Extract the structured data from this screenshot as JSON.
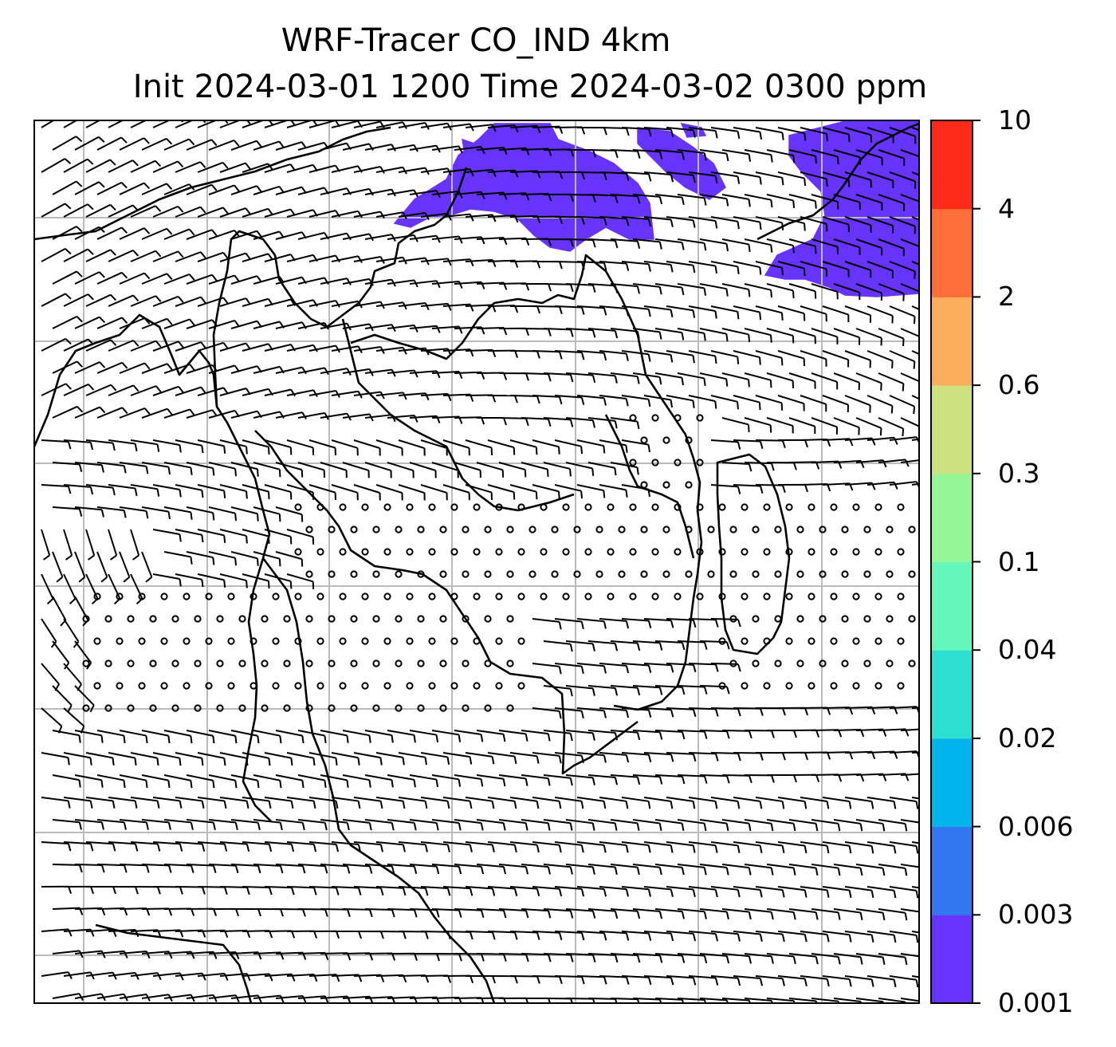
{
  "title": {
    "line1": "WRF-Tracer CO_IND 4km",
    "line2": "Init 2024-03-01 1200 Time 2024-03-02 0300 ppm"
  },
  "colorbar": {
    "ticks": [
      "0.001",
      "0.003",
      "0.006",
      "0.02",
      "0.04",
      "0.1",
      "0.3",
      "0.6",
      "2",
      "4",
      "10"
    ],
    "colors": [
      "#6633ff",
      "#3377f0",
      "#00b4ec",
      "#2ee0d0",
      "#64f7bc",
      "#96f597",
      "#cfe080",
      "#fbae5d",
      "#ff6e39",
      "#ff2a1a"
    ]
  },
  "map": {
    "tracer_color": "#6633ff",
    "graticule_color": "#bbbbbb",
    "wind_barb_color": "#000000",
    "coastline_color": "#000000",
    "tracer_present_min_ppm": 0.001,
    "tracer_present_max_ppm": 0.003
  }
}
